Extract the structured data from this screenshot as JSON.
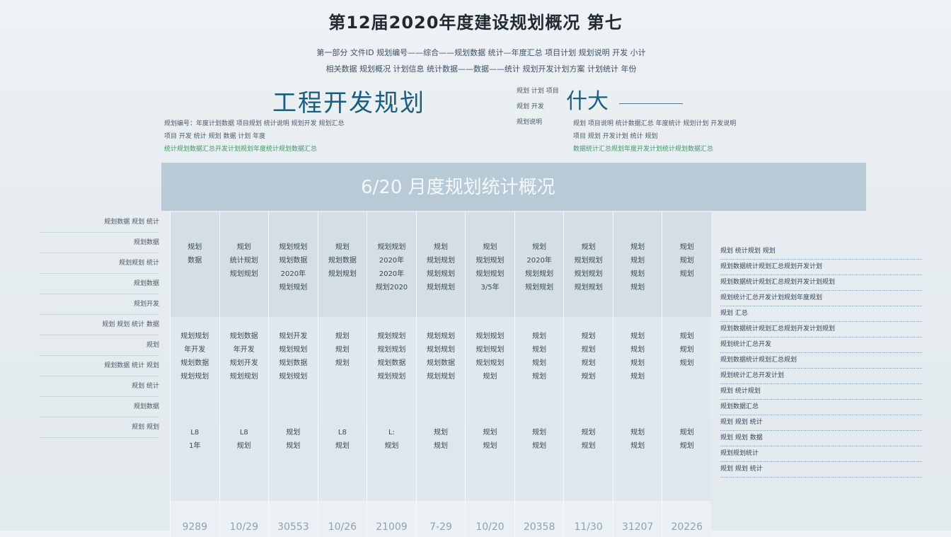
{
  "title": "第12届2020年度建设规划概况 第七",
  "subtitle_lines": [
    "第一部分 文件ID 规划编号——综合——规划数据 统计—年度汇总 项目计划 规划说明 开发 小计",
    "相关数据 规划概况 计划信息 统计数据——数据——统计 规划开发计划方案 计划统计 年份"
  ],
  "heading_left": "工程开发规划",
  "heading_right": "什大",
  "info_left": [
    "规划编号：年度计划数据 项目规划 统计说明 规划开发 规划汇总",
    "项目 开发 统计 规划 数据 计划 年度",
    "统计规划数据汇总开发计划规划年度统计规划数据汇总"
  ],
  "info_right": [
    "规划 计划 项目",
    "规划 开发",
    "规划说明"
  ],
  "info_right_lines": [
    "规划 项目说明 统计数据汇总 年度统计 规划计划 开发说明",
    "项目 规划 开发计划 统计 规划",
    "数据统计汇总规划年度开发计划统计规划数据汇总"
  ],
  "band_title": "6/20 月度规划统计概况",
  "table": {
    "columns": [
      {
        "b1": [
          "规划",
          "数据"
        ],
        "b2": [
          "规划规划",
          "年开发",
          "规划数据",
          "规划规划"
        ],
        "b3": [
          "L8",
          "1年"
        ],
        "b4": "9289"
      },
      {
        "b1": [
          "规划",
          "统计规划",
          "规划规划"
        ],
        "b2": [
          "规划数据",
          "年开发",
          "规划开发",
          "规划规划"
        ],
        "b3": [
          "L8",
          "规划"
        ],
        "b4": "10/29"
      },
      {
        "b1": [
          "规划规划",
          "规划数据",
          "2020年",
          "规划规划"
        ],
        "b2": [
          "规划开发",
          "规划规划",
          "规划数据",
          "规划规划"
        ],
        "b3": [
          "规划",
          "规划"
        ],
        "b4": "30553"
      },
      {
        "b1": [
          "规划",
          "规划数据",
          "规划规划"
        ],
        "b2": [
          "规划",
          "规划",
          "规划"
        ],
        "b3": [
          "L8",
          "规划"
        ],
        "b4": "10/26"
      },
      {
        "b1": [
          "规划规划",
          "2020年",
          "2020年",
          "规划2020"
        ],
        "b2": [
          "规划规划",
          "规划规划",
          "规划数据",
          "规划规划"
        ],
        "b3": [
          "L:",
          "规划"
        ],
        "b4": "21009"
      },
      {
        "b1": [
          "规划",
          "规划规划",
          "规划规划",
          "规划规划"
        ],
        "b2": [
          "规划规划",
          "规划规划",
          "规划数据",
          "规划规划"
        ],
        "b3": [
          "规划",
          "规划"
        ],
        "b4": "7-29"
      },
      {
        "b1": [
          "规划",
          "规划规划",
          "规划规划",
          "3/5年"
        ],
        "b2": [
          "规划规划",
          "规划规划",
          "规划规划",
          "规划"
        ],
        "b3": [
          "规划",
          "规划"
        ],
        "b4": "10/20"
      },
      {
        "b1": [
          "规划",
          "2020年",
          "规划规划",
          "规划规划"
        ],
        "b2": [
          "规划",
          "规划",
          "规划",
          "规划"
        ],
        "b3": [
          "规划",
          "规划"
        ],
        "b4": "20358"
      },
      {
        "b1": [
          "规划",
          "规划规划",
          "规划规划",
          "规划规划"
        ],
        "b2": [
          "规划",
          "规划",
          "规划",
          "规划"
        ],
        "b3": [
          "规划",
          "规划"
        ],
        "b4": "11/30"
      },
      {
        "b1": [
          "规划",
          "规划",
          "规划",
          "规划"
        ],
        "b2": [
          "规划",
          "规划",
          "规划",
          "规划"
        ],
        "b3": [
          "规划",
          "规划"
        ],
        "b4": "31207"
      },
      {
        "b1": [
          "规划",
          "规划",
          "规划"
        ],
        "b2": [
          "规划",
          "规划",
          "规划"
        ],
        "b3": [
          "规划",
          "规划"
        ],
        "b4": "20226"
      }
    ]
  },
  "left_labels": [
    "规划数据 规划 统计",
    "规划数据",
    "规划规划 统计",
    "规划数据",
    "规划开发",
    "规划 规划 统计 数据",
    "规划",
    "规划数据 统计 规划",
    "规划 统计",
    "规划数据",
    "规划 规划"
  ],
  "right_lines": [
    "规划 统计规划 规划",
    "规划数据统计规划汇总规划开发计划",
    "规划数据统计规划汇总规划开发计划规划",
    "规划统计汇总开发计划规划年度规划",
    "规划 汇总",
    "规划数据统计规划汇总规划开发计划规划",
    "规划统计汇总开发",
    "规划数据统计规划汇总规划",
    "规划统计汇总开发计划",
    "规划 统计规划",
    "规划数据汇总",
    "规划 规划 统计",
    "规划 规划 数据",
    "规划规划统计",
    "规划 规划 统计"
  ]
}
